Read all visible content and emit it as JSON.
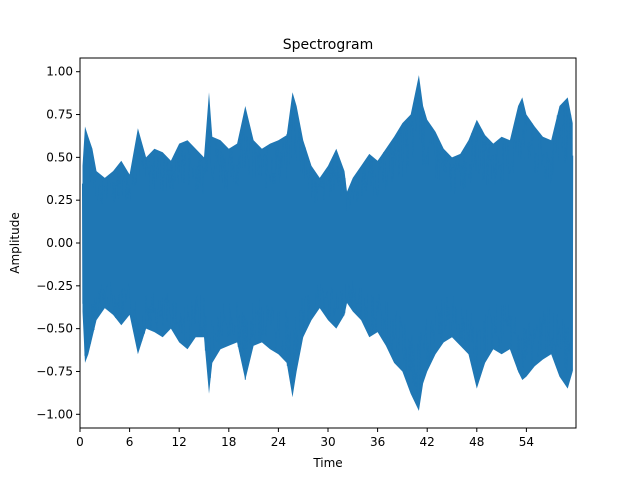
{
  "chart_data": {
    "type": "line",
    "title": "Spectrogram",
    "xlabel": "Time",
    "ylabel": "Amplitude",
    "xlim": [
      0,
      60
    ],
    "ylim": [
      -1.08,
      1.08
    ],
    "x_ticks": [
      0,
      6,
      12,
      18,
      24,
      30,
      36,
      42,
      48,
      54
    ],
    "x_tick_labels": [
      "0",
      "6",
      "12",
      "18",
      "24",
      "30",
      "36",
      "42",
      "48",
      "54"
    ],
    "y_ticks": [
      -1.0,
      -0.75,
      -0.5,
      -0.25,
      0.0,
      0.25,
      0.5,
      0.75,
      1.0
    ],
    "y_tick_labels": [
      "−1.00",
      "−0.75",
      "−0.50",
      "−0.25",
      "0.00",
      "0.25",
      "0.50",
      "0.75",
      "1.00"
    ],
    "grid": false,
    "legend": "none",
    "series": [
      {
        "color": "#1f77b4",
        "x": [
          0.3,
          0.6,
          1.0,
          1.5,
          2.0,
          3.0,
          4.0,
          5.0,
          6.0,
          7.0,
          8.0,
          9.0,
          10.0,
          11.0,
          12.0,
          13.0,
          14.0,
          15.0,
          15.6,
          16.0,
          17.0,
          18.0,
          19.0,
          20.0,
          21.0,
          22.0,
          23.0,
          24.0,
          25.0,
          25.7,
          26.2,
          27.0,
          28.0,
          29.0,
          30.0,
          31.0,
          32.0,
          32.3,
          33.0,
          34.0,
          35.0,
          36.0,
          37.0,
          38.0,
          39.0,
          40.0,
          41.0,
          41.5,
          42.0,
          43.0,
          44.0,
          45.0,
          46.0,
          47.0,
          48.0,
          49.0,
          50.0,
          51.0,
          52.0,
          53.0,
          53.5,
          54.0,
          55.0,
          56.0,
          57.0,
          58.0,
          59.0,
          59.6
        ],
        "peaks": [
          0.45,
          0.68,
          0.62,
          0.55,
          0.42,
          0.38,
          0.42,
          0.48,
          0.4,
          0.67,
          0.5,
          0.55,
          0.53,
          0.48,
          0.58,
          0.6,
          0.55,
          0.5,
          0.88,
          0.62,
          0.6,
          0.55,
          0.58,
          0.8,
          0.6,
          0.55,
          0.58,
          0.6,
          0.63,
          0.88,
          0.8,
          0.6,
          0.45,
          0.38,
          0.45,
          0.55,
          0.42,
          0.3,
          0.38,
          0.45,
          0.52,
          0.48,
          0.55,
          0.62,
          0.7,
          0.75,
          0.98,
          0.8,
          0.72,
          0.65,
          0.55,
          0.5,
          0.52,
          0.6,
          0.72,
          0.63,
          0.58,
          0.62,
          0.6,
          0.8,
          0.85,
          0.75,
          0.68,
          0.62,
          0.6,
          0.8,
          0.85,
          0.7
        ],
        "troughs": [
          -0.4,
          -0.7,
          -0.65,
          -0.55,
          -0.45,
          -0.38,
          -0.42,
          -0.48,
          -0.42,
          -0.65,
          -0.5,
          -0.52,
          -0.55,
          -0.5,
          -0.58,
          -0.62,
          -0.55,
          -0.55,
          -0.88,
          -0.7,
          -0.62,
          -0.6,
          -0.58,
          -0.8,
          -0.6,
          -0.58,
          -0.62,
          -0.65,
          -0.7,
          -0.9,
          -0.75,
          -0.55,
          -0.45,
          -0.38,
          -0.45,
          -0.5,
          -0.42,
          -0.35,
          -0.4,
          -0.45,
          -0.55,
          -0.52,
          -0.6,
          -0.7,
          -0.75,
          -0.88,
          -0.98,
          -0.82,
          -0.75,
          -0.65,
          -0.58,
          -0.55,
          -0.6,
          -0.65,
          -0.85,
          -0.7,
          -0.62,
          -0.65,
          -0.62,
          -0.75,
          -0.8,
          -0.78,
          -0.72,
          -0.68,
          -0.65,
          -0.78,
          -0.85,
          -0.75
        ]
      }
    ]
  }
}
